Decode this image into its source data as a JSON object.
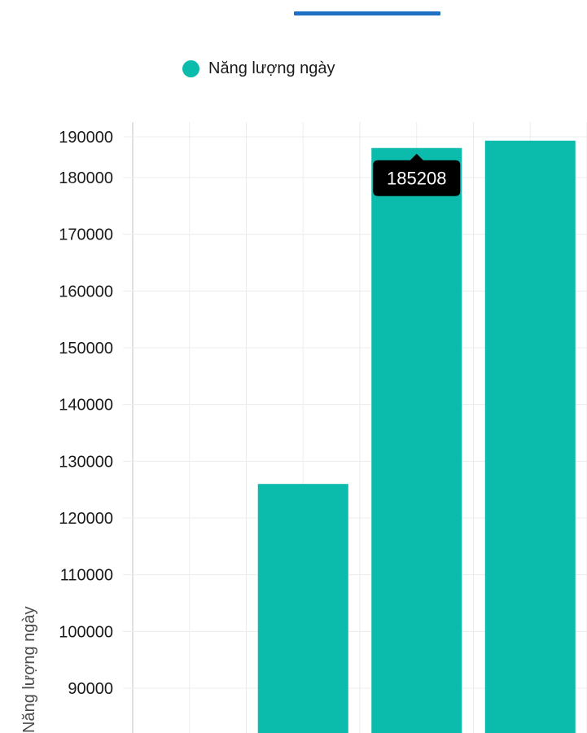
{
  "legend": {
    "label": "Năng lượng ngày",
    "color": "#0bbcad"
  },
  "tabs": {
    "active_indicator_color": "#1f6fc5"
  },
  "tooltip": {
    "value": "185208",
    "bar_index": 2
  },
  "chart_data": {
    "type": "bar",
    "categories": [
      "",
      "",
      "",
      ""
    ],
    "series": [
      {
        "name": "Năng lượng ngày",
        "color": "#0bbcad",
        "values": [
          null,
          126000,
          185208,
          186500
        ]
      }
    ],
    "ylabel": "Năng lượng ngày",
    "xlabel": "",
    "ylim": [
      85000,
      190000
    ],
    "yticks": [
      "190000",
      "180000",
      "170000",
      "160000",
      "150000",
      "140000",
      "130000",
      "120000",
      "110000",
      "100000",
      "90000"
    ],
    "grid": true,
    "legend_position": "top-center"
  }
}
